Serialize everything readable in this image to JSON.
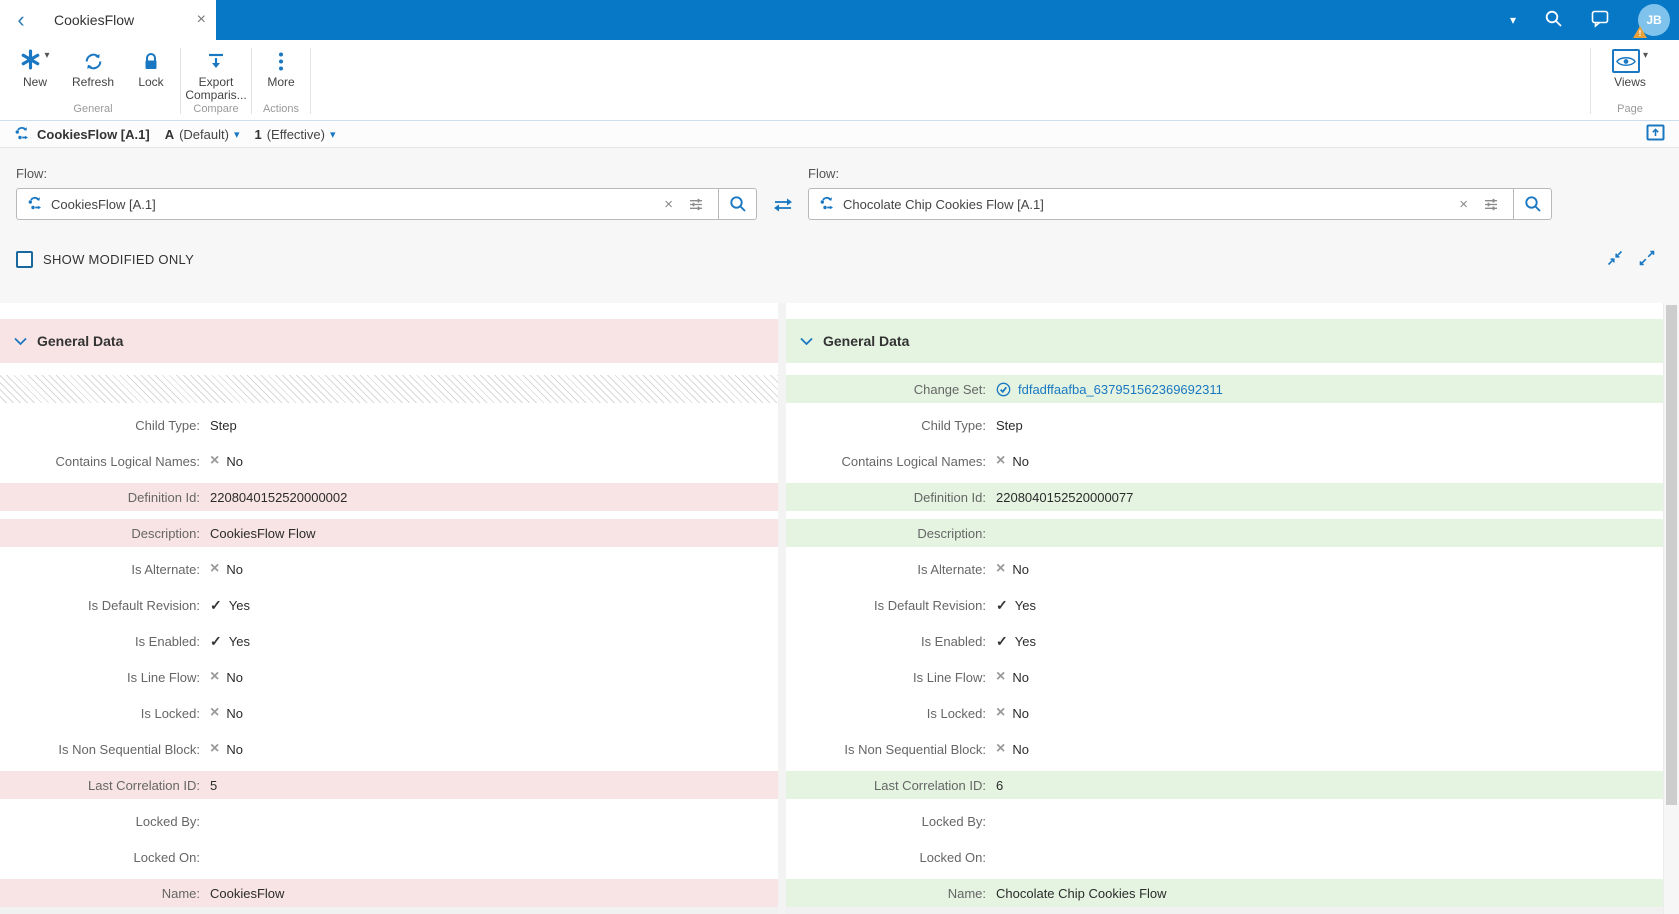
{
  "colors": {
    "titlebar_blue": "#0678c5",
    "accent_blue": "#1a78c2",
    "link_blue": "#1a78c2",
    "removed_pink": "#f8e4e4",
    "added_green": "#e4f4e1",
    "warning_orange": "#e9a23b",
    "avatar_blue": "#7fc3ec"
  },
  "icons": {
    "back_glyph": "‹",
    "close_glyph": "×",
    "clear_glyph": "×",
    "dropdown_caret_glyph": "▾",
    "cross_glyph": "×",
    "check_glyph": "✓"
  },
  "titlebar": {
    "tab_title": "CookiesFlow",
    "avatar_initials": "JB"
  },
  "toolbar": {
    "new_label": "New",
    "refresh_label": "Refresh",
    "lock_label": "Lock",
    "export_label_line1": "Export",
    "export_label_line2": "Comparis...",
    "more_label": "More",
    "views_label": "Views",
    "group_general": "General",
    "group_compare": "Compare",
    "group_actions": "Actions",
    "group_page": "Page"
  },
  "breadcrumb": {
    "title": "CookiesFlow [A.1]",
    "revision_letter": "A",
    "revision_label": "(Default)",
    "version_number": "1",
    "version_label": "(Effective)"
  },
  "filters": {
    "left_flow_label": "Flow:",
    "right_flow_label": "Flow:",
    "left_flow_value": "CookiesFlow [A.1]",
    "right_flow_value": "Chocolate Chip Cookies Flow [A.1]",
    "show_modified_only_label": "SHOW MODIFIED ONLY",
    "show_modified_only_checked": false
  },
  "left_panel": {
    "section_title": "General Data",
    "rows": [
      {
        "hatched": true
      },
      {
        "label": "Child Type:",
        "value": "Step",
        "icon": "",
        "highlighted": false
      },
      {
        "label": "Contains Logical Names:",
        "value": "No",
        "icon": "cross",
        "highlighted": false
      },
      {
        "label": "Definition Id:",
        "value": "2208040152520000002",
        "icon": "",
        "highlighted": true
      },
      {
        "label": "Description:",
        "value": "CookiesFlow Flow",
        "icon": "",
        "highlighted": true
      },
      {
        "label": "Is Alternate:",
        "value": "No",
        "icon": "cross",
        "highlighted": false
      },
      {
        "label": "Is Default Revision:",
        "value": "Yes",
        "icon": "check",
        "highlighted": false
      },
      {
        "label": "Is Enabled:",
        "value": "Yes",
        "icon": "check",
        "highlighted": false
      },
      {
        "label": "Is Line Flow:",
        "value": "No",
        "icon": "cross",
        "highlighted": false
      },
      {
        "label": "Is Locked:",
        "value": "No",
        "icon": "cross",
        "highlighted": false
      },
      {
        "label": "Is Non Sequential Block:",
        "value": "No",
        "icon": "cross",
        "highlighted": false
      },
      {
        "label": "Last Correlation ID:",
        "value": "5",
        "icon": "",
        "highlighted": true
      },
      {
        "label": "Locked By:",
        "value": "",
        "icon": "",
        "highlighted": false
      },
      {
        "label": "Locked On:",
        "value": "",
        "icon": "",
        "highlighted": false
      },
      {
        "label": "Name:",
        "value": "CookiesFlow",
        "icon": "",
        "highlighted": true
      }
    ]
  },
  "right_panel": {
    "section_title": "General Data",
    "rows": [
      {
        "label": "Change Set:",
        "value": "fdfadffaafba_637951562369692311",
        "icon": "check-circle",
        "highlighted": true,
        "link": true
      },
      {
        "label": "Child Type:",
        "value": "Step",
        "icon": "",
        "highlighted": false
      },
      {
        "label": "Contains Logical Names:",
        "value": "No",
        "icon": "cross",
        "highlighted": false
      },
      {
        "label": "Definition Id:",
        "value": "2208040152520000077",
        "icon": "",
        "highlighted": true
      },
      {
        "label": "Description:",
        "value": "",
        "icon": "",
        "highlighted": true
      },
      {
        "label": "Is Alternate:",
        "value": "No",
        "icon": "cross",
        "highlighted": false
      },
      {
        "label": "Is Default Revision:",
        "value": "Yes",
        "icon": "check",
        "highlighted": false
      },
      {
        "label": "Is Enabled:",
        "value": "Yes",
        "icon": "check",
        "highlighted": false
      },
      {
        "label": "Is Line Flow:",
        "value": "No",
        "icon": "cross",
        "highlighted": false
      },
      {
        "label": "Is Locked:",
        "value": "No",
        "icon": "cross",
        "highlighted": false
      },
      {
        "label": "Is Non Sequential Block:",
        "value": "No",
        "icon": "cross",
        "highlighted": false
      },
      {
        "label": "Last Correlation ID:",
        "value": "6",
        "icon": "",
        "highlighted": true
      },
      {
        "label": "Locked By:",
        "value": "",
        "icon": "",
        "highlighted": false
      },
      {
        "label": "Locked On:",
        "value": "",
        "icon": "",
        "highlighted": false
      },
      {
        "label": "Name:",
        "value": "Chocolate Chip Cookies Flow",
        "icon": "",
        "highlighted": true
      }
    ]
  }
}
